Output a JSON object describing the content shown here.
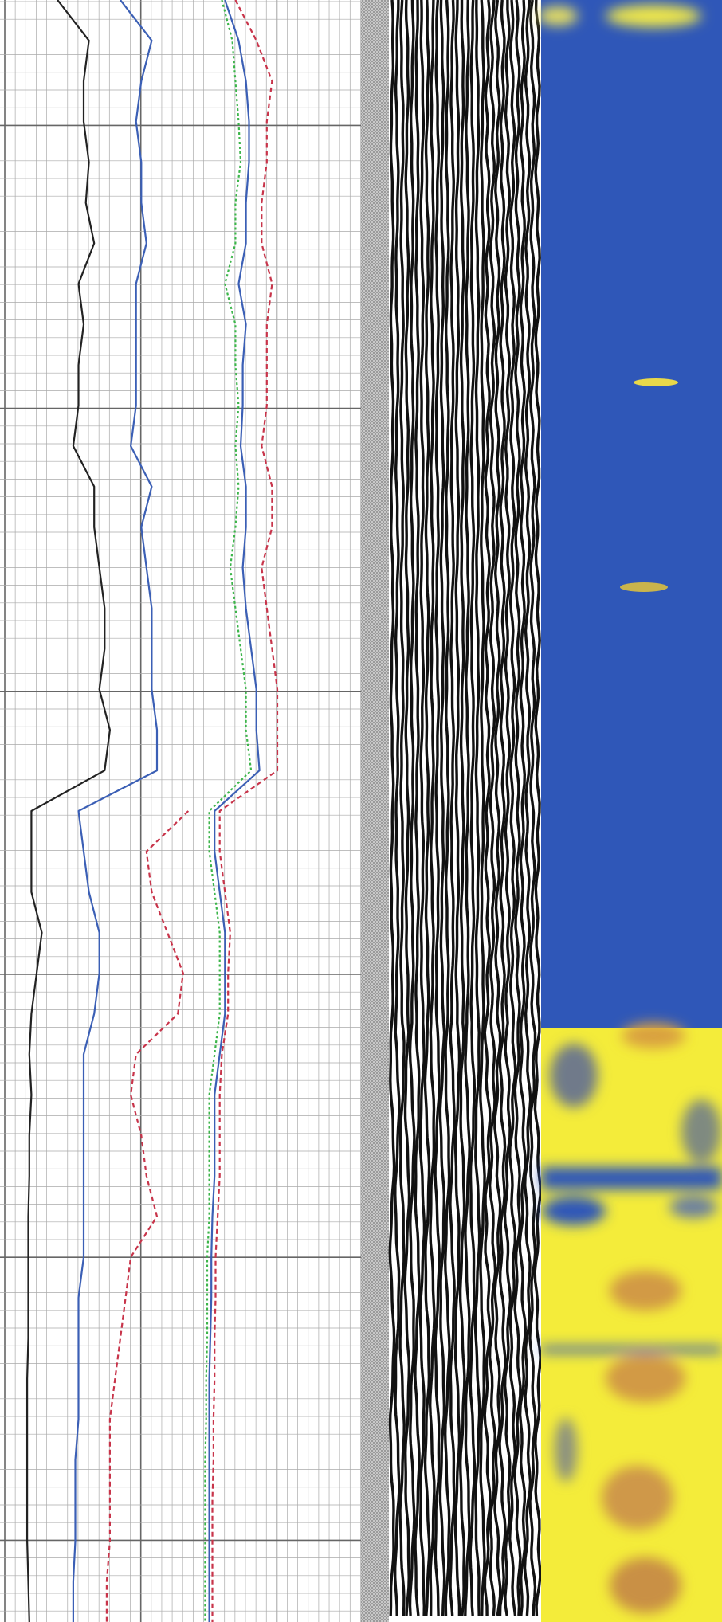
{
  "chart_data": {
    "type": "line",
    "x": [
      0,
      1,
      2,
      3,
      4,
      5,
      6,
      7,
      8,
      9,
      10,
      11,
      12,
      13,
      14,
      15,
      16,
      17,
      18,
      19,
      20,
      21,
      22,
      23,
      24,
      25,
      26,
      27,
      28,
      29,
      30,
      31,
      32,
      33,
      34,
      35,
      36,
      37,
      38,
      39,
      40
    ],
    "xlim": [
      0,
      40
    ],
    "ylim": [
      0,
      34.5
    ],
    "grid": true,
    "series": [
      {
        "color": "#222222",
        "style": "solid",
        "values": [
          5.5,
          8.5,
          8,
          8,
          8.5,
          8.2,
          9,
          7.5,
          8,
          7.5,
          7.5,
          7,
          9,
          9,
          9.5,
          10,
          10,
          9.5,
          10.5,
          10,
          3,
          3,
          3,
          4,
          3.5,
          3,
          2.8,
          3,
          2.8,
          2.8,
          2.7,
          2.7,
          2.7,
          2.7,
          2.6,
          2.6,
          2.6,
          2.6,
          2.6,
          2.7,
          2.8
        ]
      },
      {
        "color": "#3b5fb5",
        "style": "solid",
        "values": [
          11.5,
          14.5,
          13.5,
          13,
          13.5,
          13.5,
          14,
          13,
          13,
          13,
          13,
          12.5,
          14.5,
          13.5,
          14,
          14.5,
          14.5,
          14.5,
          15,
          15,
          7.5,
          8,
          8.5,
          9.5,
          9.5,
          9,
          8,
          8,
          8,
          8,
          8,
          8,
          7.5,
          7.5,
          7.5,
          7.5,
          7.2,
          7.2,
          7.2,
          7,
          7
        ]
      },
      {
        "color": "#c8344a",
        "style": "dashed",
        "values": [
          null,
          null,
          null,
          null,
          null,
          null,
          null,
          null,
          null,
          null,
          null,
          null,
          null,
          null,
          null,
          null,
          null,
          null,
          null,
          null,
          18,
          14,
          14.5,
          16,
          17.5,
          17,
          13,
          12.5,
          13.5,
          14,
          15,
          12.5,
          12,
          11.5,
          11,
          10.5,
          10.5,
          10.5,
          10.5,
          10.2,
          10.2
        ]
      },
      {
        "color": "#3cb54a",
        "style": "dotted",
        "values": [
          21.2,
          22.2,
          22.5,
          22.8,
          23,
          22.5,
          22.5,
          21.5,
          22.5,
          22.5,
          22.8,
          22.5,
          22.8,
          22.5,
          22,
          22.5,
          23,
          23.5,
          23.5,
          24,
          20,
          20,
          20.5,
          21,
          21,
          21,
          20.5,
          20,
          20,
          20,
          20,
          19.8,
          19.8,
          19.8,
          19.7,
          19.7,
          19.6,
          19.6,
          19.6,
          19.6,
          19.6
        ]
      },
      {
        "color": "#3b5fb5",
        "style": "solid",
        "values": [
          21.5,
          22.8,
          23.5,
          23.8,
          23.8,
          23.5,
          23.5,
          22.8,
          23.5,
          23.2,
          23.2,
          23,
          23.5,
          23.5,
          23.2,
          23.5,
          24,
          24.5,
          24.5,
          24.8,
          20.5,
          20.5,
          21,
          21.5,
          21.5,
          21.5,
          21,
          20.5,
          20.5,
          20.5,
          20.3,
          20.2,
          20.2,
          20.1,
          20,
          20,
          20,
          20,
          20,
          20,
          20
        ]
      },
      {
        "color": "#c8344a",
        "style": "dashed",
        "values": [
          22.5,
          24.5,
          26,
          25.5,
          25.5,
          25,
          25,
          26,
          25.5,
          25.5,
          25.5,
          25,
          26,
          26,
          25,
          25.5,
          26,
          26.5,
          26.5,
          26.5,
          21,
          21,
          21.5,
          22,
          21.8,
          21.8,
          21.2,
          21,
          21,
          21,
          20.8,
          20.6,
          20.6,
          20.5,
          20.5,
          20.4,
          20.4,
          20.3,
          20.3,
          20.3,
          20.3
        ]
      }
    ]
  }
}
